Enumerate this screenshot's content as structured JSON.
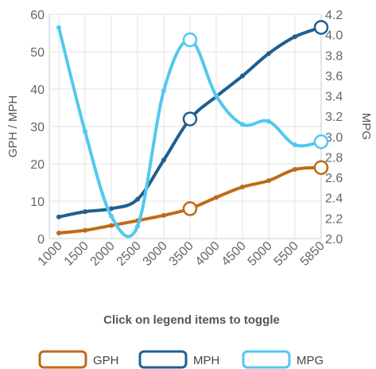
{
  "chart_data": {
    "type": "line",
    "categories": [
      "1000",
      "1500",
      "2000",
      "2500",
      "3000",
      "3500",
      "4000",
      "4500",
      "5000",
      "5500",
      "5850"
    ],
    "y_left": {
      "label": "GPH / MPH",
      "ticks": [
        "0",
        "10",
        "20",
        "30",
        "40",
        "50",
        "60"
      ],
      "range": [
        0,
        60
      ]
    },
    "y_right": {
      "label": "MPG",
      "ticks": [
        "2.0",
        "2.2",
        "2.4",
        "2.6",
        "2.8",
        "3.0",
        "3.2",
        "3.4",
        "3.6",
        "3.8",
        "4.0",
        "4.2"
      ],
      "range": [
        2.0,
        4.2
      ]
    },
    "series": [
      {
        "name": "GPH",
        "axis": "left",
        "color": "#c06a16",
        "values": [
          1.5,
          2.2,
          3.5,
          4.8,
          6.2,
          8.0,
          11.0,
          13.8,
          15.5,
          18.5,
          19.0
        ],
        "highlight_indices": [
          5,
          10
        ]
      },
      {
        "name": "MPH",
        "axis": "left",
        "color": "#1f5f93",
        "values": [
          5.8,
          7.2,
          8.0,
          10.5,
          21.0,
          32.0,
          38.0,
          43.5,
          49.5,
          54.0,
          56.5
        ],
        "highlight_indices": [
          5,
          10
        ]
      },
      {
        "name": "MPG",
        "axis": "right",
        "color": "#52c8ef",
        "values": [
          4.07,
          3.05,
          2.22,
          2.12,
          3.45,
          3.95,
          3.4,
          3.12,
          3.15,
          2.92,
          2.95
        ],
        "highlight_indices": [
          5,
          10
        ]
      }
    ],
    "grid": true,
    "legend_position": "bottom",
    "note": "Click on legend items to toggle"
  }
}
